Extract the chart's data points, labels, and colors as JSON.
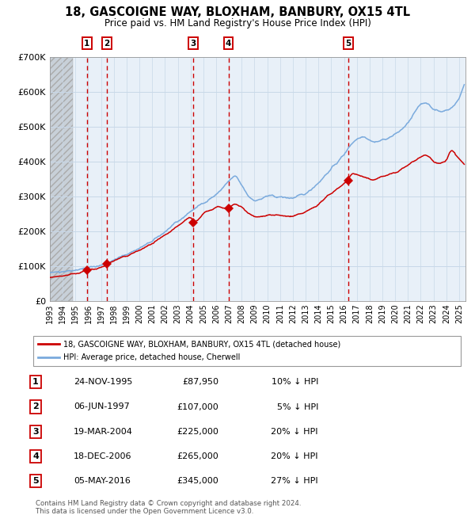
{
  "title": "18, GASCOIGNE WAY, BLOXHAM, BANBURY, OX15 4TL",
  "subtitle": "Price paid vs. HM Land Registry's House Price Index (HPI)",
  "legend_line1": "18, GASCOIGNE WAY, BLOXHAM, BANBURY, OX15 4TL (detached house)",
  "legend_line2": "HPI: Average price, detached house, Cherwell",
  "footer1": "Contains HM Land Registry data © Crown copyright and database right 2024.",
  "footer2": "This data is licensed under the Open Government Licence v3.0.",
  "xlim_start": 1993.0,
  "xlim_end": 2025.5,
  "ylim_min": 0,
  "ylim_max": 700000,
  "yticks": [
    0,
    100000,
    200000,
    300000,
    400000,
    500000,
    600000,
    700000
  ],
  "ytick_labels": [
    "£0",
    "£100K",
    "£200K",
    "£300K",
    "£400K",
    "£500K",
    "£600K",
    "£700K"
  ],
  "transactions": [
    {
      "id": 1,
      "date_str": "24-NOV-1995",
      "year": 1995.9,
      "price": 87950,
      "pct": "10%"
    },
    {
      "id": 2,
      "date_str": "06-JUN-1997",
      "year": 1997.45,
      "price": 107000,
      "pct": "5%"
    },
    {
      "id": 3,
      "date_str": "19-MAR-2004",
      "year": 2004.22,
      "price": 225000,
      "pct": "20%"
    },
    {
      "id": 4,
      "date_str": "18-DEC-2006",
      "year": 2006.96,
      "price": 265000,
      "pct": "20%"
    },
    {
      "id": 5,
      "date_str": "05-MAY-2016",
      "year": 2016.34,
      "price": 345000,
      "pct": "27%"
    }
  ],
  "hpi_color": "#7aaadd",
  "price_color": "#cc0000",
  "grid_color": "#c8d8e8",
  "vline_color": "#cc0000",
  "plot_bg": "#e8f0f8",
  "hatch_bg": "#d0d8e0",
  "table_rows": [
    [
      "1",
      "24-NOV-1995",
      "£87,950",
      "10% ↓ HPI"
    ],
    [
      "2",
      "06-JUN-1997",
      "£107,000",
      "5% ↓ HPI"
    ],
    [
      "3",
      "19-MAR-2004",
      "£225,000",
      "20% ↓ HPI"
    ],
    [
      "4",
      "18-DEC-2006",
      "£265,000",
      "20% ↓ HPI"
    ],
    [
      "5",
      "05-MAY-2016",
      "£345,000",
      "27% ↓ HPI"
    ]
  ],
  "hpi_anchors": [
    [
      1993.0,
      82000
    ],
    [
      1994.0,
      86000
    ],
    [
      1995.0,
      90000
    ],
    [
      1996.0,
      96000
    ],
    [
      1997.0,
      103000
    ],
    [
      1998.0,
      118000
    ],
    [
      1999.0,
      135000
    ],
    [
      2000.0,
      152000
    ],
    [
      2001.0,
      172000
    ],
    [
      2002.0,
      200000
    ],
    [
      2003.0,
      228000
    ],
    [
      2004.0,
      258000
    ],
    [
      2005.0,
      282000
    ],
    [
      2006.0,
      305000
    ],
    [
      2007.0,
      345000
    ],
    [
      2007.5,
      360000
    ],
    [
      2008.0,
      330000
    ],
    [
      2008.5,
      300000
    ],
    [
      2009.0,
      288000
    ],
    [
      2009.5,
      292000
    ],
    [
      2010.0,
      302000
    ],
    [
      2011.0,
      298000
    ],
    [
      2012.0,
      295000
    ],
    [
      2013.0,
      308000
    ],
    [
      2014.0,
      340000
    ],
    [
      2015.0,
      380000
    ],
    [
      2016.0,
      420000
    ],
    [
      2016.5,
      450000
    ],
    [
      2017.0,
      465000
    ],
    [
      2017.5,
      475000
    ],
    [
      2018.0,
      460000
    ],
    [
      2018.5,
      455000
    ],
    [
      2019.0,
      462000
    ],
    [
      2019.5,
      468000
    ],
    [
      2020.0,
      478000
    ],
    [
      2020.5,
      492000
    ],
    [
      2021.0,
      510000
    ],
    [
      2021.5,
      540000
    ],
    [
      2022.0,
      565000
    ],
    [
      2022.5,
      570000
    ],
    [
      2023.0,
      548000
    ],
    [
      2023.5,
      542000
    ],
    [
      2024.0,
      548000
    ],
    [
      2024.5,
      555000
    ],
    [
      2025.0,
      580000
    ],
    [
      2025.4,
      620000
    ]
  ],
  "price_anchors": [
    [
      1993.0,
      68000
    ],
    [
      1994.0,
      73000
    ],
    [
      1995.0,
      80000
    ],
    [
      1995.9,
      87950
    ],
    [
      1996.5,
      92000
    ],
    [
      1997.0,
      96000
    ],
    [
      1997.45,
      107000
    ],
    [
      1998.0,
      116000
    ],
    [
      1999.0,
      130000
    ],
    [
      2000.0,
      146000
    ],
    [
      2001.0,
      165000
    ],
    [
      2002.0,
      188000
    ],
    [
      2003.0,
      215000
    ],
    [
      2004.0,
      245000
    ],
    [
      2004.22,
      225000
    ],
    [
      2004.8,
      240000
    ],
    [
      2005.0,
      252000
    ],
    [
      2005.5,
      260000
    ],
    [
      2006.0,
      272000
    ],
    [
      2006.5,
      268000
    ],
    [
      2006.96,
      265000
    ],
    [
      2007.0,
      268000
    ],
    [
      2007.5,
      278000
    ],
    [
      2008.0,
      268000
    ],
    [
      2008.5,
      252000
    ],
    [
      2009.0,
      240000
    ],
    [
      2009.5,
      242000
    ],
    [
      2010.0,
      248000
    ],
    [
      2011.0,
      245000
    ],
    [
      2012.0,
      242000
    ],
    [
      2013.0,
      255000
    ],
    [
      2014.0,
      278000
    ],
    [
      2015.0,
      310000
    ],
    [
      2016.0,
      338000
    ],
    [
      2016.34,
      345000
    ],
    [
      2016.5,
      368000
    ],
    [
      2017.0,
      362000
    ],
    [
      2017.5,
      355000
    ],
    [
      2018.0,
      348000
    ],
    [
      2018.5,
      350000
    ],
    [
      2019.0,
      358000
    ],
    [
      2019.5,
      362000
    ],
    [
      2020.0,
      368000
    ],
    [
      2020.5,
      378000
    ],
    [
      2021.0,
      390000
    ],
    [
      2021.5,
      402000
    ],
    [
      2022.0,
      415000
    ],
    [
      2022.5,
      418000
    ],
    [
      2023.0,
      400000
    ],
    [
      2023.5,
      395000
    ],
    [
      2024.0,
      402000
    ],
    [
      2024.3,
      435000
    ],
    [
      2024.5,
      428000
    ],
    [
      2025.0,
      408000
    ],
    [
      2025.4,
      392000
    ]
  ]
}
